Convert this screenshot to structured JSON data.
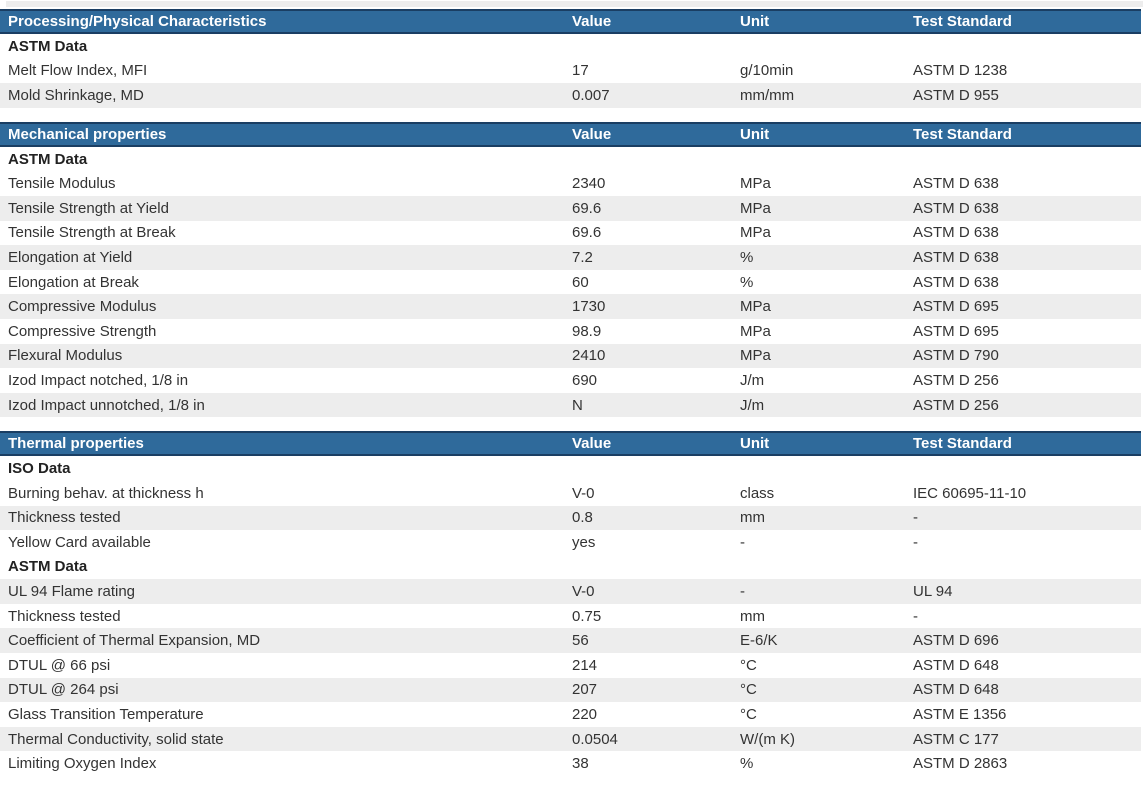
{
  "colors": {
    "header_bg": "#2f6a9b",
    "header_border": "#1a3e63",
    "header_text": "#ffffff",
    "row_stripe": "#ededed",
    "body_text": "#333333"
  },
  "columns": {
    "value": "Value",
    "unit": "Unit",
    "test_standard": "Test Standard"
  },
  "sections": [
    {
      "title": "Processing/Physical Characteristics",
      "rows": [
        {
          "type": "subheader",
          "label": "ASTM Data"
        },
        {
          "type": "data",
          "property": "Melt Flow Index, MFI",
          "value": "17",
          "unit": "g/10min",
          "test_standard": "ASTM D 1238"
        },
        {
          "type": "data",
          "property": "Mold Shrinkage, MD",
          "value": "0.007",
          "unit": "mm/mm",
          "test_standard": "ASTM D 955"
        }
      ]
    },
    {
      "title": "Mechanical properties",
      "rows": [
        {
          "type": "subheader",
          "label": "ASTM Data"
        },
        {
          "type": "data",
          "property": "Tensile Modulus",
          "value": "2340",
          "unit": "MPa",
          "test_standard": "ASTM D 638"
        },
        {
          "type": "data",
          "property": "Tensile Strength at Yield",
          "value": "69.6",
          "unit": "MPa",
          "test_standard": "ASTM D 638"
        },
        {
          "type": "data",
          "property": "Tensile Strength at Break",
          "value": "69.6",
          "unit": "MPa",
          "test_standard": "ASTM D 638"
        },
        {
          "type": "data",
          "property": "Elongation at Yield",
          "value": "7.2",
          "unit": "%",
          "test_standard": "ASTM D 638"
        },
        {
          "type": "data",
          "property": "Elongation at Break",
          "value": "60",
          "unit": "%",
          "test_standard": "ASTM D 638"
        },
        {
          "type": "data",
          "property": "Compressive Modulus",
          "value": "1730",
          "unit": "MPa",
          "test_standard": "ASTM D 695"
        },
        {
          "type": "data",
          "property": "Compressive Strength",
          "value": "98.9",
          "unit": "MPa",
          "test_standard": "ASTM D 695"
        },
        {
          "type": "data",
          "property": "Flexural Modulus",
          "value": "2410",
          "unit": "MPa",
          "test_standard": "ASTM D 790"
        },
        {
          "type": "data",
          "property": "Izod Impact notched, 1/8 in",
          "value": "690",
          "unit": "J/m",
          "test_standard": "ASTM D 256"
        },
        {
          "type": "data",
          "property": "Izod Impact unnotched, 1/8 in",
          "value": "N",
          "unit": "J/m",
          "test_standard": "ASTM D 256"
        }
      ]
    },
    {
      "title": "Thermal properties",
      "rows": [
        {
          "type": "subheader",
          "label": "ISO Data"
        },
        {
          "type": "data",
          "property": "Burning behav. at thickness h",
          "value": "V-0",
          "unit": "class",
          "test_standard": "IEC 60695-11-10"
        },
        {
          "type": "data",
          "property": "Thickness tested",
          "value": "0.8",
          "unit": "mm",
          "test_standard": "-"
        },
        {
          "type": "data",
          "property": "Yellow Card available",
          "value": "yes",
          "unit": "-",
          "test_standard": "-"
        },
        {
          "type": "subheader",
          "label": "ASTM Data"
        },
        {
          "type": "data",
          "property": "UL 94 Flame rating",
          "value": "V-0",
          "unit": "-",
          "test_standard": "UL 94"
        },
        {
          "type": "data",
          "property": "Thickness tested",
          "value": "0.75",
          "unit": "mm",
          "test_standard": "-"
        },
        {
          "type": "data",
          "property": "Coefficient of Thermal Expansion, MD",
          "value": "56",
          "unit": "E-6/K",
          "test_standard": "ASTM D 696"
        },
        {
          "type": "data",
          "property": "DTUL @ 66 psi",
          "value": "214",
          "unit": "°C",
          "test_standard": "ASTM D 648"
        },
        {
          "type": "data",
          "property": "DTUL @ 264 psi",
          "value": "207",
          "unit": "°C",
          "test_standard": "ASTM D 648"
        },
        {
          "type": "data",
          "property": "Glass Transition Temperature",
          "value": "220",
          "unit": "°C",
          "test_standard": "ASTM E 1356"
        },
        {
          "type": "data",
          "property": "Thermal Conductivity, solid state",
          "value": "0.0504",
          "unit": "W/(m K)",
          "test_standard": "ASTM C 177"
        },
        {
          "type": "data",
          "property": "Limiting Oxygen Index",
          "value": "38",
          "unit": "%",
          "test_standard": "ASTM D 2863"
        }
      ]
    }
  ]
}
